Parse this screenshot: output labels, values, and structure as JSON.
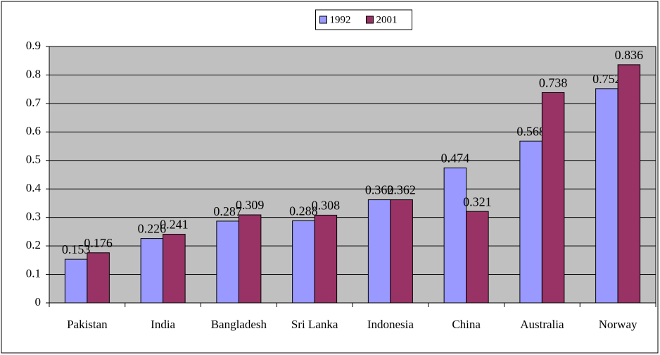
{
  "chart_data": {
    "type": "bar",
    "categories": [
      "Pakistan",
      "India",
      "Bangladesh",
      "Sri Lanka",
      "Indonesia",
      "China",
      "Australia",
      "Norway"
    ],
    "series": [
      {
        "name": "1992",
        "color": "#9999ff",
        "values": [
          0.153,
          0.226,
          0.287,
          0.288,
          0.362,
          0.474,
          0.568,
          0.752
        ]
      },
      {
        "name": "2001",
        "color": "#993366",
        "values": [
          0.176,
          0.241,
          0.309,
          0.308,
          0.362,
          0.321,
          0.738,
          0.836
        ]
      }
    ],
    "ylim": [
      0,
      0.9
    ],
    "yticks": [
      0,
      0.1,
      0.2,
      0.3,
      0.4,
      0.5,
      0.6,
      0.7,
      0.8,
      0.9
    ],
    "grid": true,
    "legend": "top",
    "plot_background": "#c0c0c0"
  }
}
